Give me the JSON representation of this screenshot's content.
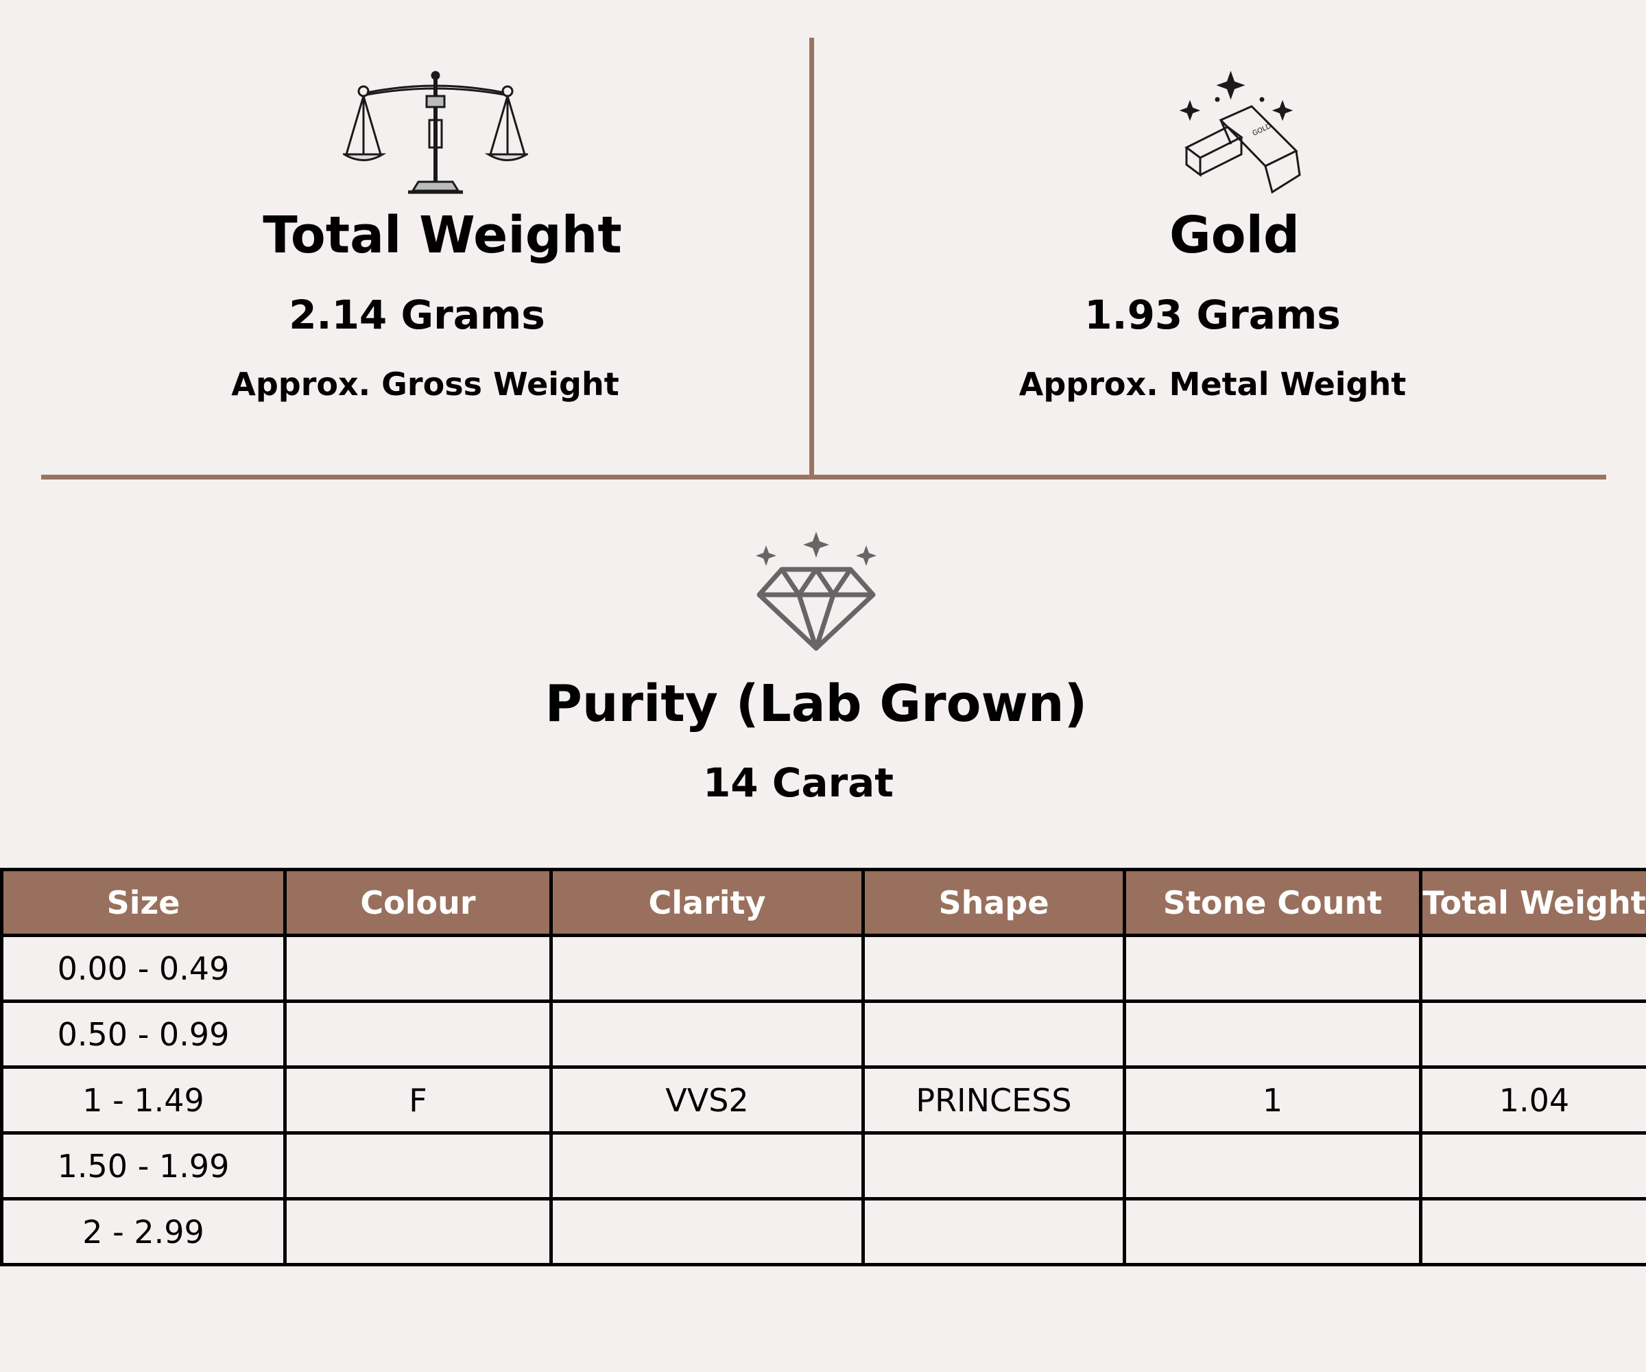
{
  "total_weight": {
    "title": "Total Weight",
    "value": "2.14 Grams",
    "subtitle": "Approx. Gross Weight",
    "icon": "balance-scale-icon"
  },
  "gold": {
    "title": "Gold",
    "value": "1.93 Grams",
    "subtitle": "Approx. Metal Weight",
    "icon": "gold-bars-icon",
    "bar_label": "GOLD"
  },
  "purity": {
    "title": "Purity (Lab Grown)",
    "value": "14 Carat",
    "icon": "diamond-icon"
  },
  "colors": {
    "accent": "#9a7462",
    "header_bg": "#98705d",
    "background": "#f4f0ef"
  },
  "table": {
    "headers": [
      "Size",
      "Colour",
      "Clarity",
      "Shape",
      "Stone Count",
      "Total Weight"
    ],
    "rows": [
      [
        "0.00 - 0.49",
        "",
        "",
        "",
        "",
        ""
      ],
      [
        "0.50 - 0.99",
        "",
        "",
        "",
        "",
        ""
      ],
      [
        "1 - 1.49",
        "F",
        "VVS2",
        "PRINCESS",
        "1",
        "1.04"
      ],
      [
        "1.50 - 1.99",
        "",
        "",
        "",
        "",
        ""
      ],
      [
        "2 - 2.99",
        "",
        "",
        "",
        "",
        ""
      ]
    ]
  }
}
